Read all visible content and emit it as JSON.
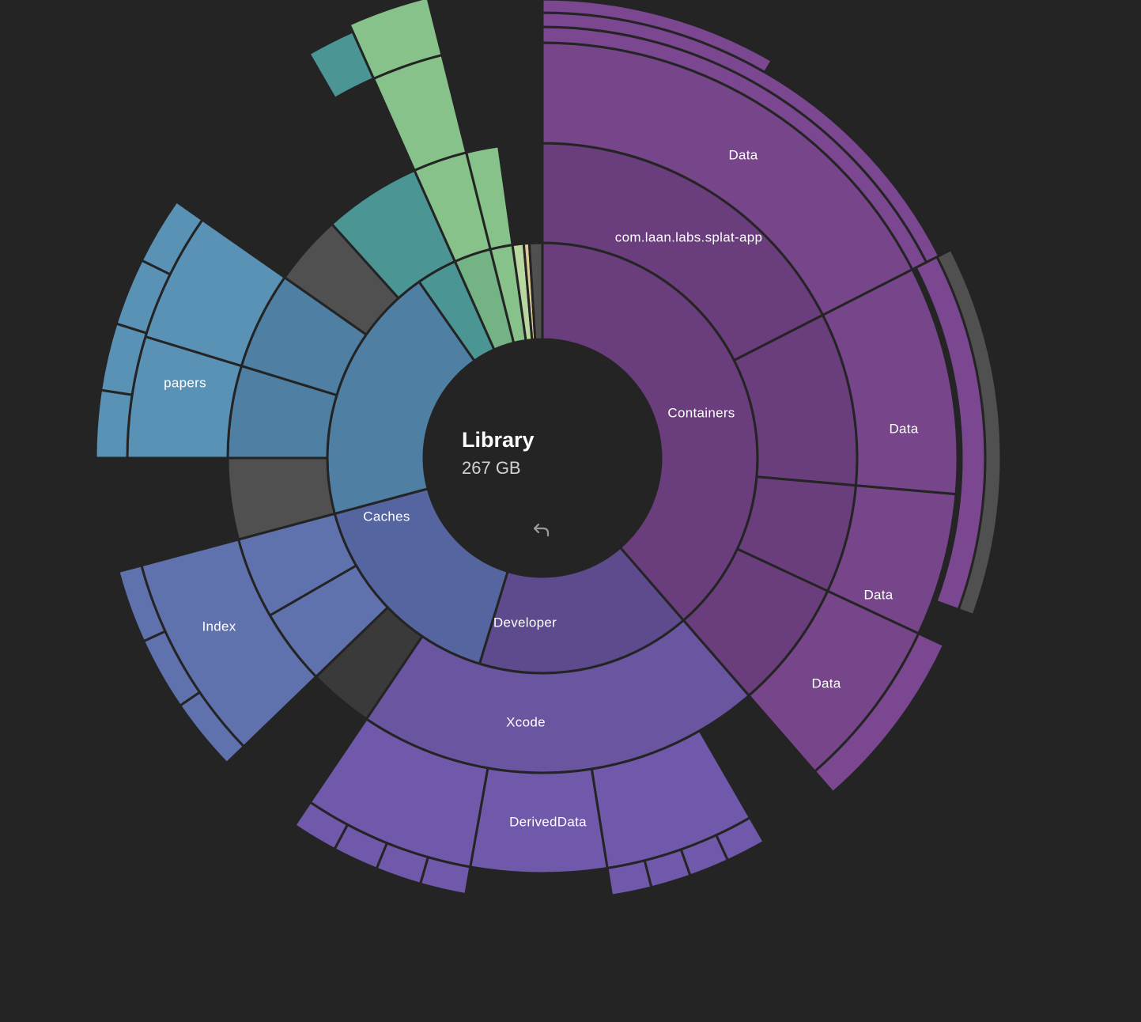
{
  "center": {
    "name": "Library",
    "size": "267 GB"
  },
  "icons": {
    "back": "back-arrow-icon"
  },
  "labels": {
    "containers": "Containers",
    "com_laan": "com.laan.labs.splat-app",
    "data_outer": "Data",
    "data_right": "Data",
    "data_lower1": "Data",
    "data_lower2": "Data",
    "caches": "Caches",
    "papers": "papers",
    "index": "Index",
    "developer": "Developer",
    "xcode": "Xcode",
    "derived_data": "DerivedData"
  },
  "colors": {
    "background": "#242424",
    "center": "#2f2f2f",
    "containers": "#6a3d7d",
    "containers_light": "#76458a",
    "data_purple": "#7a4790",
    "developer": "#5e4b8e",
    "xcode": "#6a55a0",
    "derived": "#7058aa",
    "caches": "#5565a0",
    "index": "#5f72ad",
    "teal_blue": "#4f7fa3",
    "papers": "#5a92b6",
    "teal": "#4b9694",
    "green": "#74b384",
    "light_green": "#86c28a",
    "grey_more": "#505050",
    "dark_grey": "#3a3a3a"
  }
}
